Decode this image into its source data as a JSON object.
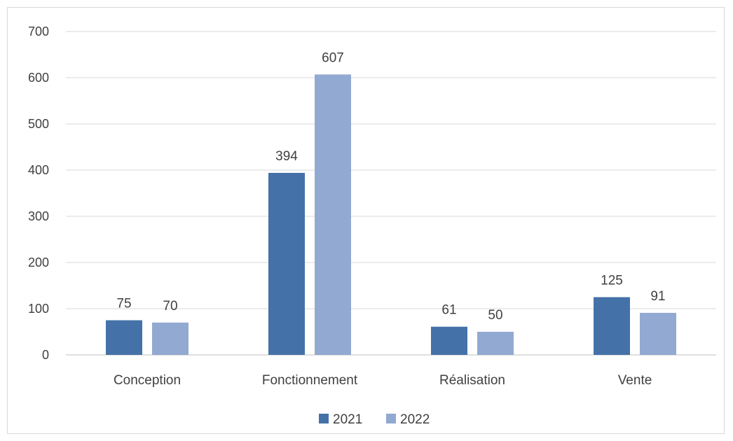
{
  "chart_data": {
    "type": "bar",
    "categories": [
      "Conception",
      "Fonctionnement",
      "Réalisation",
      "Vente"
    ],
    "series": [
      {
        "name": "2021",
        "values": [
          75,
          394,
          61,
          125
        ],
        "color": "#4472a8"
      },
      {
        "name": "2022",
        "values": [
          70,
          607,
          50,
          91
        ],
        "color": "#92a9d1"
      }
    ],
    "ylim": [
      0,
      700
    ],
    "yticks": [
      0,
      100,
      200,
      300,
      400,
      500,
      600,
      700
    ],
    "grid": true,
    "legend_position": "bottom"
  },
  "colors": {
    "gridline": "#d9d9d9",
    "axis": "#bfbfbf",
    "text": "#404040"
  }
}
